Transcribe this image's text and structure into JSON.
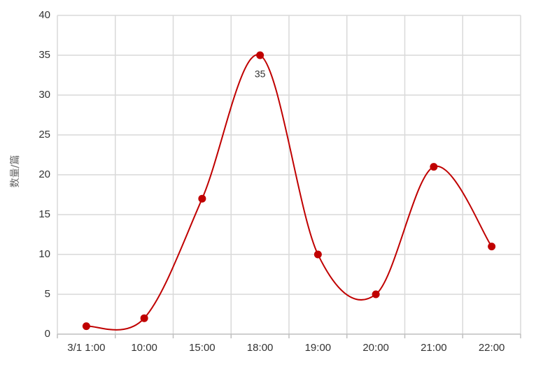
{
  "chart_data": {
    "type": "line",
    "categories": [
      "3/1 1:00",
      "10:00",
      "15:00",
      "18:00",
      "19:00",
      "20:00",
      "21:00",
      "22:00"
    ],
    "series": [
      {
        "values": [
          1,
          2,
          17,
          35,
          10,
          5,
          21,
          11
        ]
      }
    ],
    "ylabel": "数量/篇",
    "xlabel": "",
    "ylim": [
      0,
      40
    ],
    "yticks": [
      "0",
      "5",
      "10",
      "15",
      "20",
      "25",
      "30",
      "35",
      "40"
    ],
    "annotations": [
      {
        "category": "18:00",
        "value": 35,
        "text": "35"
      }
    ],
    "grid": true,
    "smooth": true,
    "colors": {
      "line": "#c00000",
      "marker": "#c00000",
      "grid": "#d9d9d9",
      "axis": "#bfbfbf"
    }
  }
}
